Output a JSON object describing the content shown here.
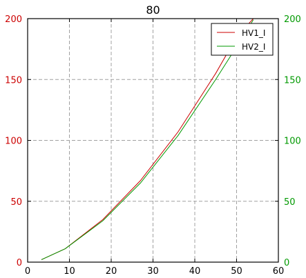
{
  "chart_data": {
    "type": "line",
    "title": "80",
    "xlabel": "",
    "ylabel": "",
    "y2label": "",
    "xlim": [
      0,
      60
    ],
    "ylim": [
      0,
      200
    ],
    "y2lim": [
      0,
      200
    ],
    "x_ticks": [
      0,
      10,
      20,
      30,
      40,
      50,
      60
    ],
    "y_ticks": [
      0,
      50,
      100,
      150,
      200
    ],
    "y2_ticks": [
      0,
      50,
      100,
      150,
      200
    ],
    "grid": true,
    "legend_position": "top-right",
    "left_axis_color": "#cc0000",
    "right_axis_color": "#009900",
    "series": [
      {
        "name": "HV1_I",
        "color": "#cc0000",
        "axis": "left",
        "x": [
          3.3,
          9.0,
          18.0,
          27.0,
          36.0,
          45.0,
          50.0,
          54.0
        ],
        "y": [
          2,
          11,
          35,
          67,
          107,
          155,
          185,
          200
        ]
      },
      {
        "name": "HV2_I",
        "color": "#009900",
        "axis": "right",
        "x": [
          3.3,
          9.0,
          18.0,
          27.0,
          36.0,
          45.0,
          50.0,
          54.0
        ],
        "y": [
          2,
          11,
          34,
          65,
          104,
          150,
          177,
          199
        ]
      }
    ]
  }
}
